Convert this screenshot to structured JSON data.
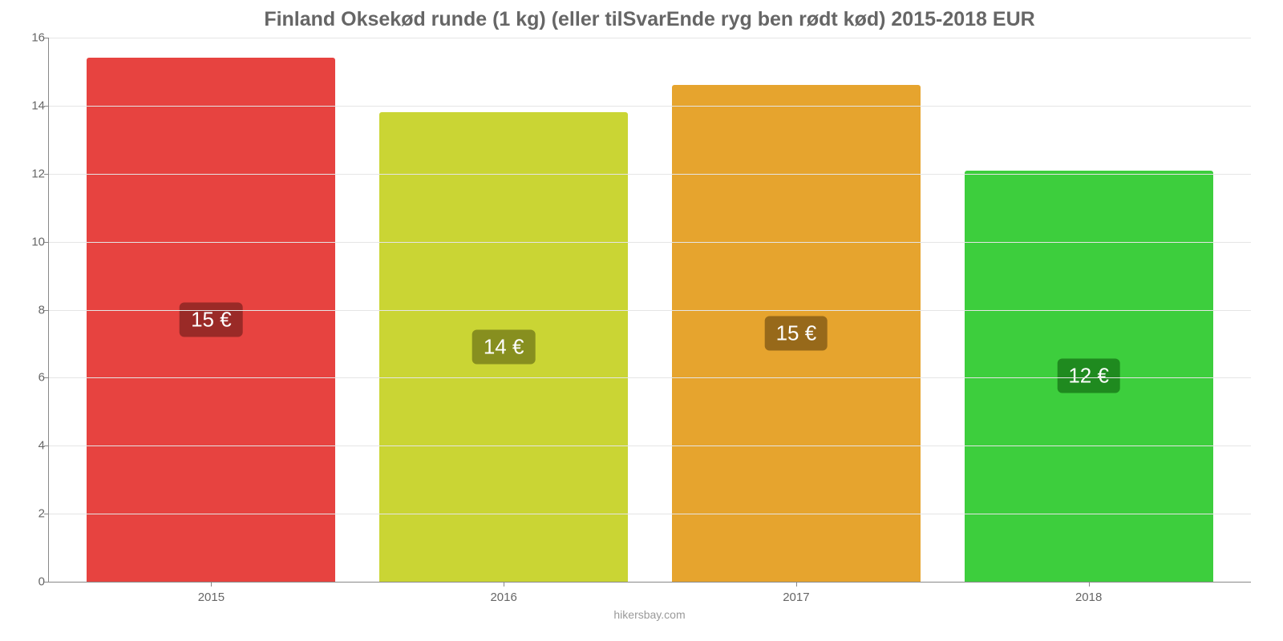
{
  "chart": {
    "type": "bar",
    "title": "Finland Oksekød runde (1 kg) (eller tilSvarEnde ryg ben rødt kød) 2015-2018 EUR",
    "title_color": "#666666",
    "title_fontsize": 25,
    "background_color": "#ffffff",
    "grid_color": "#e5e5e5",
    "axis_color": "#888888",
    "tick_label_color": "#666666",
    "tick_label_fontsize": 15,
    "categories": [
      "2015",
      "2016",
      "2017",
      "2018"
    ],
    "values": [
      15.4,
      13.8,
      14.6,
      12.1
    ],
    "bar_labels": [
      "15 €",
      "14 €",
      "15 €",
      "12 €"
    ],
    "bar_colors": [
      "#e74340",
      "#cad534",
      "#e6a42e",
      "#3dce3d"
    ],
    "bar_label_bg": [
      "#9a2a27",
      "#878f1f",
      "#97691a",
      "#1f8a1f"
    ],
    "bar_label_color": "#ffffff",
    "bar_label_fontsize": 26,
    "bar_width_pct": 85,
    "ylim": [
      0,
      16
    ],
    "yticks": [
      0,
      2,
      4,
      6,
      8,
      10,
      12,
      14,
      16
    ],
    "credit": "hikersbay.com",
    "credit_color": "#9a9a9a",
    "credit_fontsize": 14
  }
}
